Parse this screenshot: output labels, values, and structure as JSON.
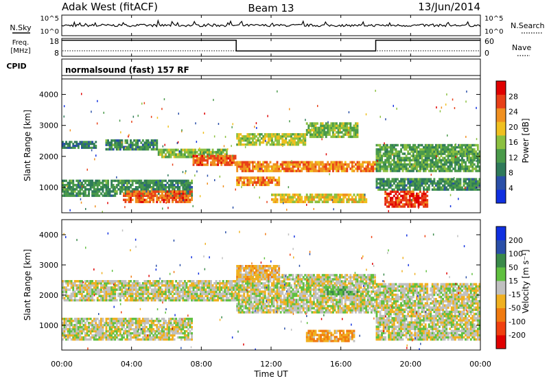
{
  "header": {
    "site": "Adak West (fitACF)",
    "beam": "Beam 13",
    "date": "13/Jun/2014"
  },
  "noise_panel": {
    "left_label": "N.Sky",
    "right_label": "N.Search",
    "ticks_left": [
      "10^5",
      "10^0"
    ],
    "ticks_right": [
      "10^5",
      "10^0"
    ]
  },
  "freq_panel": {
    "left_label_1": "Freq.",
    "left_label_2": "[MHz]",
    "right_label": "Nave",
    "ticks_left": [
      "18",
      "8"
    ],
    "ticks_right": [
      "60",
      "0"
    ]
  },
  "cpid_panel": {
    "label": "CPID",
    "program": "normalsound (fast) 157 RF"
  },
  "power_panel": {
    "ylabel": "Slant Range [km]",
    "yticks": [
      "4000",
      "3000",
      "2000",
      "1000"
    ],
    "colorbar_label": "Power [dB]",
    "colorbar_ticks": [
      "28",
      "24",
      "20",
      "16",
      "12",
      "8",
      "4"
    ]
  },
  "velocity_panel": {
    "ylabel": "Slant Range [km]",
    "yticks": [
      "4000",
      "3000",
      "2000",
      "1000"
    ],
    "colorbar_label": "Velocity [m s⁻¹]",
    "colorbar_ticks": [
      "200",
      "100",
      "50",
      "15",
      "-15",
      "-50",
      "-100",
      "-200"
    ]
  },
  "xaxis": {
    "label": "Time UT",
    "ticks": [
      "00:00",
      "04:00",
      "08:00",
      "12:00",
      "16:00",
      "20:00",
      "00:00"
    ]
  },
  "colors": {
    "power_scale": [
      "#1030e0",
      "#2a4fa8",
      "#2f7a5a",
      "#4a9a4a",
      "#8cc040",
      "#f0c020",
      "#f09020",
      "#e84018",
      "#e00000"
    ],
    "velocity_scale": [
      "#e00000",
      "#f04010",
      "#f07a10",
      "#f0b020",
      "#c0c0c0",
      "#60c040",
      "#3a8a4a",
      "#2a4fa8",
      "#1030e0"
    ]
  },
  "chart_data": [
    {
      "type": "line",
      "title": "N.Sky / N.Search noise",
      "x_range_hours": [
        0,
        24
      ],
      "y_scale": "log",
      "ylim": [
        "10^0",
        "10^5"
      ]
    },
    {
      "type": "line",
      "title": "Frequency / Nave",
      "x": [
        0,
        10,
        10,
        18,
        18,
        24
      ],
      "freq_mhz": [
        17,
        17,
        11,
        11,
        17,
        17
      ],
      "nave_range": [
        0,
        60
      ]
    },
    {
      "type": "heatmap",
      "panel": "power",
      "xlim": [
        0,
        24
      ],
      "ylim": [
        180,
        4500
      ],
      "zlim": [
        0,
        30
      ],
      "z_unit": "dB",
      "bands": [
        {
          "t": [
            0.0,
            2.0
          ],
          "r": [
            2250,
            2500
          ],
          "p": 8
        },
        {
          "t": [
            2.5,
            5.5
          ],
          "r": [
            2200,
            2550
          ],
          "p": 10
        },
        {
          "t": [
            5.5,
            9.5
          ],
          "r": [
            1950,
            2250
          ],
          "p": 14
        },
        {
          "t": [
            7.5,
            10.0
          ],
          "r": [
            1700,
            2050
          ],
          "p": 24
        },
        {
          "t": [
            0.0,
            7.5
          ],
          "r": [
            700,
            1250
          ],
          "p": 10
        },
        {
          "t": [
            3.5,
            7.5
          ],
          "r": [
            500,
            900
          ],
          "p": 24
        },
        {
          "t": [
            10.0,
            14.0
          ],
          "r": [
            2350,
            2750
          ],
          "p": 16
        },
        {
          "t": [
            14.0,
            17.0
          ],
          "r": [
            2600,
            3100
          ],
          "p": 14
        },
        {
          "t": [
            10.0,
            18.0
          ],
          "r": [
            1500,
            1850
          ],
          "p": 22
        },
        {
          "t": [
            10.0,
            12.5
          ],
          "r": [
            1050,
            1350
          ],
          "p": 22
        },
        {
          "t": [
            12.0,
            17.5
          ],
          "r": [
            500,
            800
          ],
          "p": 18
        },
        {
          "t": [
            18.0,
            24.0
          ],
          "r": [
            1500,
            2400
          ],
          "p": 12
        },
        {
          "t": [
            18.5,
            21.0
          ],
          "r": [
            350,
            900
          ],
          "p": 26
        },
        {
          "t": [
            18.0,
            24.0
          ],
          "r": [
            900,
            1300
          ],
          "p": 10
        }
      ]
    },
    {
      "type": "heatmap",
      "panel": "velocity",
      "xlim": [
        0,
        24
      ],
      "ylim": [
        180,
        4500
      ],
      "zlim": [
        -200,
        200
      ],
      "z_unit": "m s⁻¹",
      "bands": [
        {
          "t": [
            0.0,
            10.0
          ],
          "r": [
            1800,
            2500
          ],
          "v": 0
        },
        {
          "t": [
            0.0,
            7.5
          ],
          "r": [
            500,
            1250
          ],
          "v": 0
        },
        {
          "t": [
            10.0,
            18.0
          ],
          "r": [
            1400,
            2700
          ],
          "v": 0
        },
        {
          "t": [
            10.0,
            12.5
          ],
          "r": [
            2500,
            3000
          ],
          "v": -40
        },
        {
          "t": [
            14.0,
            16.8
          ],
          "r": [
            450,
            850
          ],
          "v": -60
        },
        {
          "t": [
            15.0,
            17.0
          ],
          "r": [
            2000,
            2300
          ],
          "v": 40
        },
        {
          "t": [
            18.0,
            24.0
          ],
          "r": [
            500,
            2400
          ],
          "v": 0
        }
      ]
    }
  ]
}
